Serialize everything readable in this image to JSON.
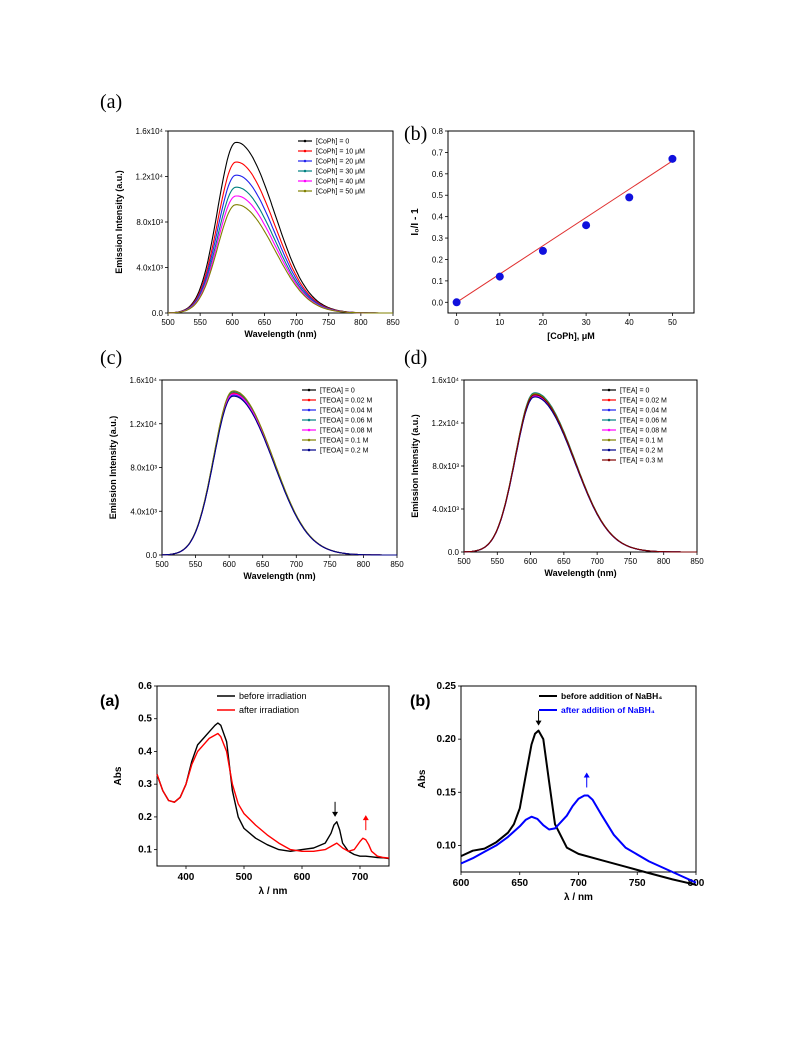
{
  "chart_data": [
    {
      "panel": "(a)",
      "type": "line",
      "xlabel": "Wavelength (nm)",
      "ylabel": "Emission Intensity (a.u.)",
      "xlim": [
        500,
        850
      ],
      "ylim": [
        0,
        16000
      ],
      "xticks": [
        "500",
        "550",
        "600",
        "650",
        "700",
        "750",
        "800",
        "850"
      ],
      "yticks": [
        "0.0",
        "4.0x10³",
        "8.0x10³",
        "1.2x10⁴",
        "1.6x10⁴"
      ],
      "legend": "top-right",
      "series": [
        {
          "name": "[CoPh] = 0",
          "color": "#000000",
          "peak_x": 605,
          "peak_y": 15600
        },
        {
          "name": "[CoPh] = 10 μM",
          "color": "#ff0000",
          "peak_x": 605,
          "peak_y": 13800
        },
        {
          "name": "[CoPh] = 20 μM",
          "color": "#2222ee",
          "peak_x": 605,
          "peak_y": 12600
        },
        {
          "name": "[CoPh] = 30 μM",
          "color": "#008080",
          "peak_x": 605,
          "peak_y": 11500
        },
        {
          "name": "[CoPh] = 40 μM",
          "color": "#ff00ff",
          "peak_x": 605,
          "peak_y": 10700
        },
        {
          "name": "[CoPh] = 50 μM",
          "color": "#808000",
          "peak_x": 605,
          "peak_y": 9900
        }
      ]
    },
    {
      "panel": "(b)",
      "type": "scatter",
      "xlabel": "[CoPh], μM",
      "ylabel": "I₀/I - 1",
      "xlim": [
        -2,
        55
      ],
      "ylim": [
        -0.05,
        0.8
      ],
      "xticks": [
        "0",
        "10",
        "20",
        "30",
        "40",
        "50"
      ],
      "yticks": [
        "0.0",
        "0.1",
        "0.2",
        "0.3",
        "0.4",
        "0.5",
        "0.6",
        "0.7",
        "0.8"
      ],
      "x": [
        0,
        10,
        20,
        30,
        40,
        50
      ],
      "y": [
        0.0,
        0.12,
        0.24,
        0.36,
        0.49,
        0.67
      ],
      "fit": {
        "x": [
          0,
          50
        ],
        "y": [
          0.0,
          0.66
        ]
      },
      "point_color": "#1010dd",
      "fit_color": "#e03030"
    },
    {
      "panel": "(c)",
      "type": "line",
      "xlabel": "Wavelength (nm)",
      "ylabel": "Emission Intensity (a.u.)",
      "xlim": [
        500,
        850
      ],
      "ylim": [
        0,
        16000
      ],
      "xticks": [
        "500",
        "550",
        "600",
        "650",
        "700",
        "750",
        "800",
        "850"
      ],
      "yticks": [
        "0.0",
        "4.0x10³",
        "8.0x10³",
        "1.2x10⁴",
        "1.6x10⁴"
      ],
      "legend": "top-right",
      "series": [
        {
          "name": "[TEOA] = 0",
          "color": "#000000",
          "peak_x": 605,
          "peak_y": 15300
        },
        {
          "name": "[TEOA] = 0.02 M",
          "color": "#ff0000",
          "peak_x": 605,
          "peak_y": 15400
        },
        {
          "name": "[TEOA] = 0.04 M",
          "color": "#2222ee",
          "peak_x": 605,
          "peak_y": 15200
        },
        {
          "name": "[TEOA] = 0.06 M",
          "color": "#008080",
          "peak_x": 605,
          "peak_y": 15500
        },
        {
          "name": "[TEOA] = 0.08 M",
          "color": "#ff00ff",
          "peak_x": 605,
          "peak_y": 15300
        },
        {
          "name": "[TEOA] = 0.1 M",
          "color": "#808000",
          "peak_x": 605,
          "peak_y": 15600
        },
        {
          "name": "[TEOA] = 0.2 M",
          "color": "#000088",
          "peak_x": 605,
          "peak_y": 15100
        }
      ]
    },
    {
      "panel": "(d)",
      "type": "line",
      "xlabel": "Wavelength (nm)",
      "ylabel": "Emission Intensity (a.u.)",
      "xlim": [
        500,
        850
      ],
      "ylim": [
        0,
        16000
      ],
      "xticks": [
        "500",
        "550",
        "600",
        "650",
        "700",
        "750",
        "800",
        "850"
      ],
      "yticks": [
        "0.0",
        "4.0x10³",
        "8.0x10³",
        "1.2x10⁴",
        "1.6x10⁴"
      ],
      "legend": "top-right",
      "series": [
        {
          "name": "[TEA] = 0",
          "color": "#000000",
          "peak_x": 605,
          "peak_y": 15200
        },
        {
          "name": "[TEA] = 0.02 M",
          "color": "#ff0000",
          "peak_x": 605,
          "peak_y": 15300
        },
        {
          "name": "[TEA] = 0.04 M",
          "color": "#2222ee",
          "peak_x": 605,
          "peak_y": 15000
        },
        {
          "name": "[TEA] = 0.06 M",
          "color": "#008080",
          "peak_x": 605,
          "peak_y": 15400
        },
        {
          "name": "[TEA] = 0.08 M",
          "color": "#ff00ff",
          "peak_x": 605,
          "peak_y": 15100
        },
        {
          "name": "[TEA] = 0.1 M",
          "color": "#808000",
          "peak_x": 605,
          "peak_y": 15300
        },
        {
          "name": "[TEA] = 0.2 M",
          "color": "#000088",
          "peak_x": 605,
          "peak_y": 15000
        },
        {
          "name": "[TEA] = 0.3 M",
          "color": "#800000",
          "peak_x": 605,
          "peak_y": 15200
        }
      ]
    },
    {
      "panel": "(a)",
      "type": "line",
      "xlabel": "λ / nm",
      "ylabel": "Abs",
      "xlim": [
        350,
        750
      ],
      "ylim": [
        0.05,
        0.6
      ],
      "xticks": [
        "400",
        "500",
        "600",
        "700"
      ],
      "yticks": [
        "0.1",
        "0.2",
        "0.3",
        "0.4",
        "0.5",
        "0.6"
      ],
      "legend": "top-right",
      "arrow_down_x": 657,
      "arrow_up_x": 710,
      "series": [
        {
          "name": "before irradiation",
          "color": "#000000",
          "x": [
            350,
            360,
            370,
            380,
            390,
            400,
            410,
            420,
            430,
            440,
            450,
            455,
            460,
            470,
            480,
            490,
            500,
            520,
            540,
            560,
            580,
            600,
            620,
            640,
            650,
            655,
            660,
            665,
            670,
            680,
            690,
            700,
            710,
            720,
            730,
            740,
            750
          ],
          "y": [
            0.33,
            0.28,
            0.25,
            0.245,
            0.26,
            0.3,
            0.37,
            0.42,
            0.44,
            0.46,
            0.48,
            0.487,
            0.48,
            0.43,
            0.28,
            0.2,
            0.165,
            0.135,
            0.115,
            0.1,
            0.095,
            0.1,
            0.105,
            0.12,
            0.15,
            0.175,
            0.185,
            0.16,
            0.12,
            0.095,
            0.085,
            0.08,
            0.08,
            0.078,
            0.076,
            0.075,
            0.073
          ]
        },
        {
          "name": "after irradiation",
          "color": "#ff0000",
          "x": [
            350,
            360,
            370,
            380,
            390,
            400,
            410,
            420,
            430,
            440,
            450,
            455,
            460,
            470,
            480,
            490,
            500,
            520,
            540,
            560,
            580,
            600,
            620,
            640,
            650,
            660,
            670,
            680,
            690,
            700,
            705,
            710,
            715,
            720,
            730,
            740,
            750
          ],
          "y": [
            0.33,
            0.28,
            0.25,
            0.245,
            0.26,
            0.3,
            0.36,
            0.4,
            0.42,
            0.44,
            0.45,
            0.455,
            0.445,
            0.4,
            0.3,
            0.24,
            0.21,
            0.175,
            0.145,
            0.12,
            0.1,
            0.095,
            0.095,
            0.1,
            0.11,
            0.12,
            0.105,
            0.095,
            0.1,
            0.125,
            0.135,
            0.13,
            0.115,
            0.095,
            0.08,
            0.076,
            0.074
          ]
        }
      ]
    },
    {
      "panel": "(b)",
      "type": "line",
      "xlabel": "λ / nm",
      "ylabel": "Abs",
      "xlim": [
        600,
        800
      ],
      "ylim": [
        0.075,
        0.25
      ],
      "xticks": [
        "600",
        "650",
        "700",
        "750",
        "800"
      ],
      "yticks": [
        "0.10",
        "0.15",
        "0.20",
        "0.25"
      ],
      "legend": "top-right",
      "arrow_down_x": 666,
      "arrow_up_x": 707,
      "series": [
        {
          "name": "before addition of NaBH₄",
          "color": "#000000",
          "x": [
            600,
            610,
            620,
            630,
            640,
            645,
            650,
            655,
            660,
            663,
            666,
            670,
            675,
            680,
            690,
            700,
            720,
            740,
            760,
            780,
            800
          ],
          "y": [
            0.09,
            0.095,
            0.097,
            0.103,
            0.112,
            0.12,
            0.135,
            0.165,
            0.195,
            0.205,
            0.208,
            0.2,
            0.16,
            0.12,
            0.098,
            0.092,
            0.086,
            0.08,
            0.074,
            0.068,
            0.063
          ]
        },
        {
          "name": "after addition of NaBH₄",
          "color": "#0000ff",
          "x": [
            600,
            610,
            620,
            630,
            640,
            650,
            655,
            660,
            665,
            670,
            675,
            680,
            690,
            695,
            700,
            705,
            708,
            712,
            720,
            730,
            740,
            760,
            780,
            800
          ],
          "y": [
            0.083,
            0.088,
            0.094,
            0.1,
            0.108,
            0.118,
            0.124,
            0.127,
            0.125,
            0.119,
            0.115,
            0.116,
            0.128,
            0.137,
            0.144,
            0.147,
            0.147,
            0.143,
            0.128,
            0.11,
            0.098,
            0.085,
            0.075,
            0.065
          ]
        }
      ]
    }
  ]
}
